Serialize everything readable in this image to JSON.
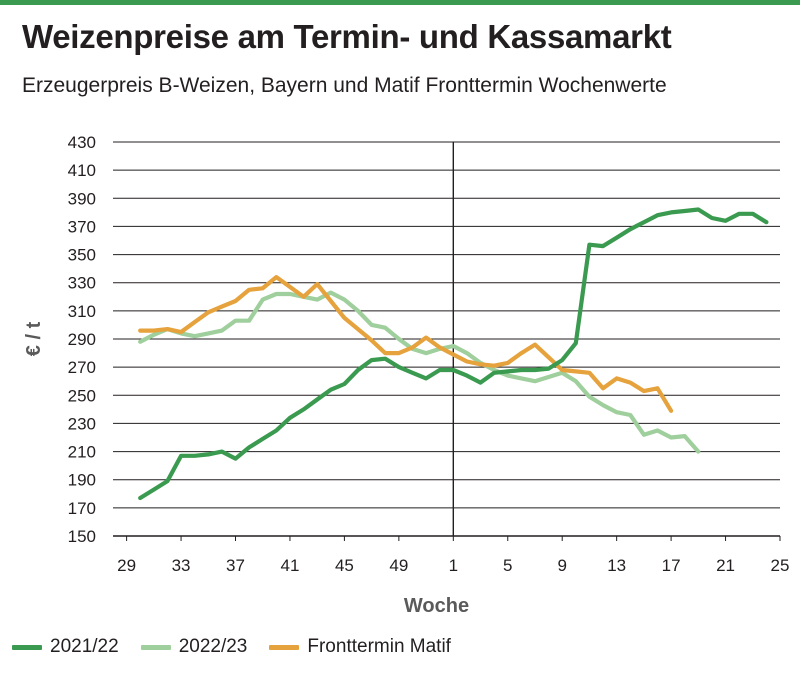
{
  "header": {
    "title": "Weizenpreise am Termin- und Kassamarkt",
    "subtitle": "Erzeugerpreis B-Weizen, Bayern und Matif Fronttermin Wochenwerte"
  },
  "colors": {
    "accent_bar": "#3a9a4f",
    "s2122": "#3a9a4f",
    "s2223": "#9fcf9c",
    "matif": "#e6a23c"
  },
  "chart_data": {
    "type": "line",
    "title": "Weizenpreise am Termin- und Kassamarkt",
    "subtitle": "Erzeugerpreis B-Weizen, Bayern und Matif Fronttermin Wochenwerte",
    "xlabel": "Woche",
    "ylabel": "€ / t",
    "ylim": [
      150,
      430
    ],
    "yticks": [
      150,
      170,
      190,
      210,
      230,
      250,
      270,
      290,
      310,
      330,
      350,
      370,
      390,
      410,
      430
    ],
    "xtick_labels": [
      "29",
      "33",
      "37",
      "41",
      "45",
      "49",
      "1",
      "5",
      "9",
      "13",
      "17",
      "21",
      "25"
    ],
    "x_note": "x values are week positions counted from calendar week 29 (0 = week 29, 24 = week 1 of the following year)",
    "week_divider_at": 24,
    "x_range": [
      -1,
      48
    ],
    "grid": "horizontal",
    "legend_position": "bottom",
    "series": [
      {
        "name": "2021/22",
        "color": "#3a9a4f",
        "x": [
          1,
          2,
          3,
          4,
          5,
          6,
          7,
          8,
          9,
          10,
          11,
          12,
          13,
          14,
          15,
          16,
          17,
          18,
          19,
          20,
          21,
          22,
          23,
          24,
          25,
          26,
          27,
          28,
          29,
          30,
          31,
          32,
          33,
          34,
          35,
          36,
          37,
          38,
          39,
          40,
          41,
          42,
          43,
          44,
          45,
          46,
          47
        ],
        "y": [
          177,
          183,
          189,
          207,
          207,
          208,
          210,
          205,
          213,
          219,
          225,
          234,
          240,
          247,
          254,
          258,
          268,
          275,
          276,
          270,
          266,
          262,
          268,
          268,
          264,
          259,
          266,
          267,
          268,
          268,
          269,
          275,
          287,
          357,
          356,
          362,
          368,
          373,
          378,
          380,
          381,
          382,
          376,
          374,
          379,
          379,
          373
        ]
      },
      {
        "name": "2022/23",
        "color": "#9fcf9c",
        "x": [
          1,
          2,
          3,
          4,
          5,
          6,
          7,
          8,
          9,
          10,
          11,
          12,
          13,
          14,
          15,
          16,
          17,
          18,
          19,
          20,
          21,
          22,
          23,
          24,
          25,
          26,
          27,
          28,
          29,
          30,
          31,
          32,
          33,
          34,
          35,
          36,
          37,
          38,
          39,
          40,
          41,
          42
        ],
        "y": [
          288,
          293,
          297,
          294,
          292,
          294,
          296,
          303,
          303,
          318,
          322,
          322,
          320,
          318,
          323,
          318,
          310,
          300,
          298,
          290,
          283,
          280,
          283,
          285,
          280,
          273,
          268,
          264,
          262,
          260,
          263,
          266,
          260,
          249,
          243,
          238,
          236,
          222,
          225,
          220,
          221,
          210
        ]
      },
      {
        "name": "Fronttermin Matif",
        "color": "#e6a23c",
        "x": [
          1,
          2,
          3,
          4,
          5,
          6,
          7,
          8,
          9,
          10,
          11,
          12,
          13,
          14,
          15,
          16,
          17,
          18,
          19,
          20,
          21,
          22,
          23,
          24,
          25,
          26,
          27,
          28,
          29,
          30,
          31,
          32,
          33,
          34,
          35,
          36,
          37,
          38,
          39,
          40,
          41,
          42
        ],
        "y": [
          296,
          296,
          297,
          295,
          302,
          309,
          313,
          317,
          325,
          326,
          334,
          327,
          320,
          329,
          317,
          305,
          297,
          289,
          280,
          280,
          284,
          291,
          284,
          279,
          274,
          272,
          271,
          273,
          280,
          286,
          277,
          268,
          267,
          266,
          255,
          262,
          259,
          253,
          255,
          239,
          null,
          null
        ]
      }
    ]
  }
}
